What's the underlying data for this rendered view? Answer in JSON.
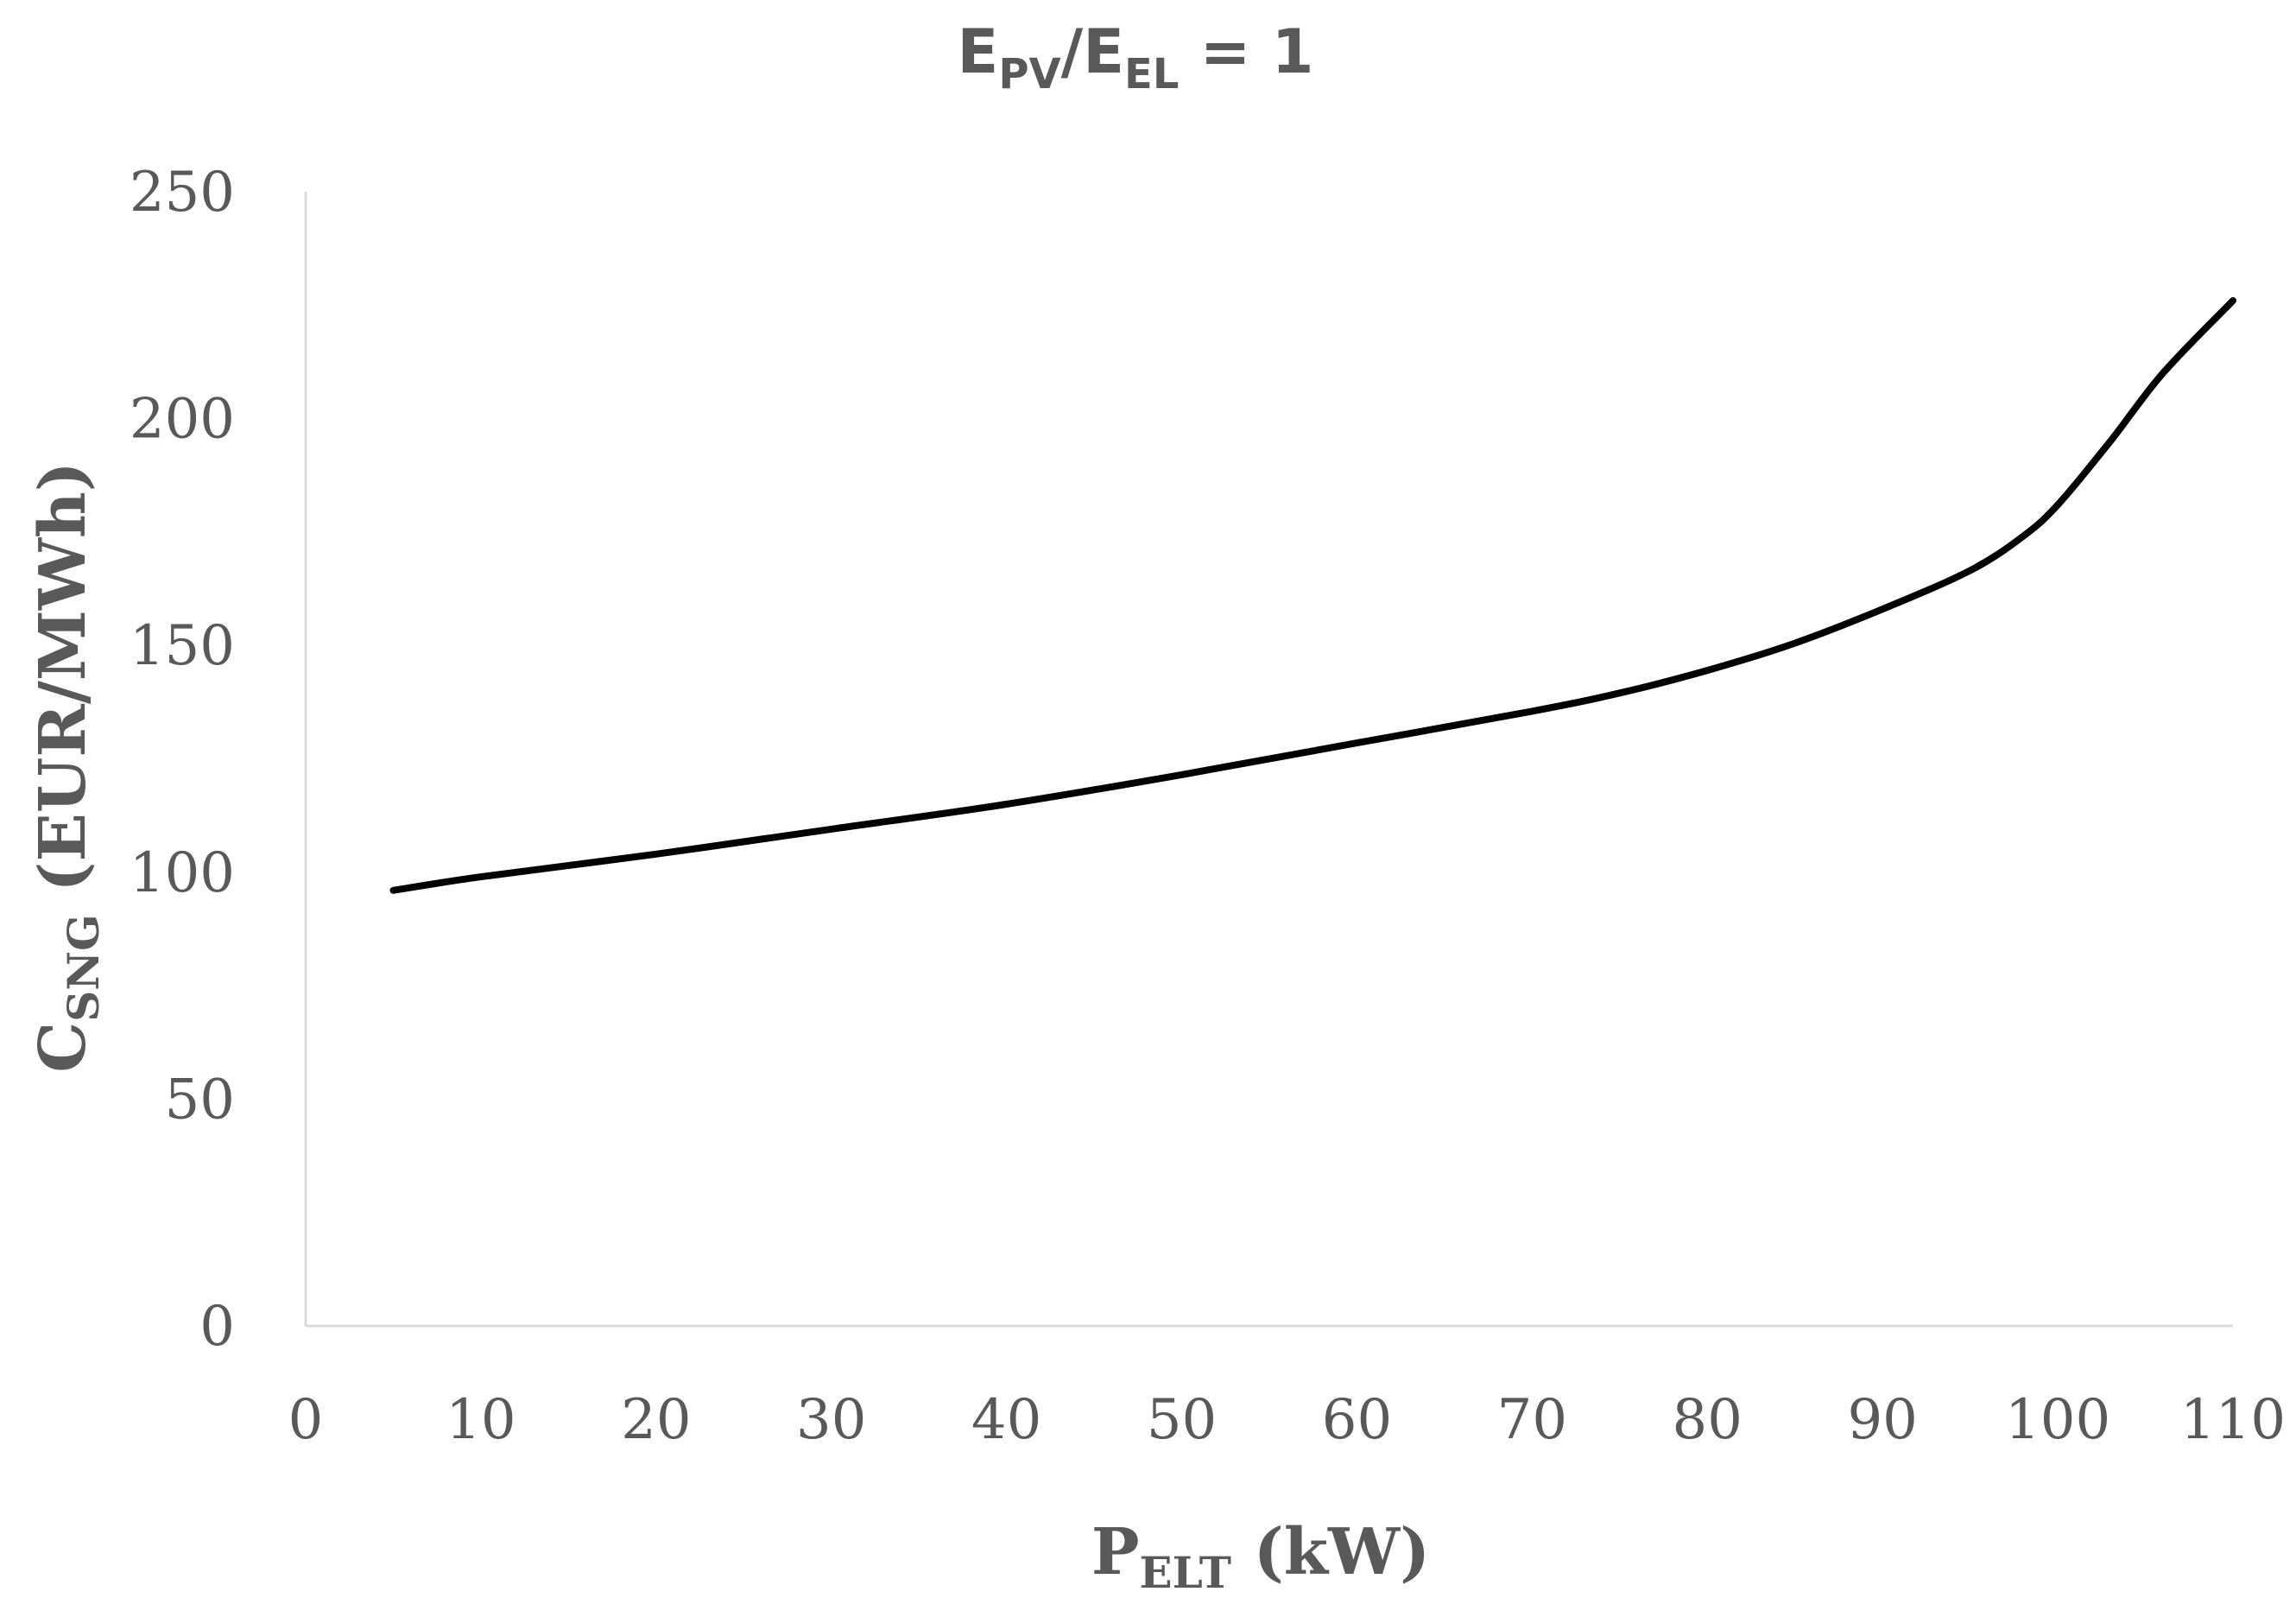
{
  "chart_data": {
    "type": "line",
    "title": {
      "main1": "E",
      "sub1": "PV",
      "main2": "/E",
      "sub2": "EL",
      "main3": " = 1"
    },
    "xlabel": {
      "main": "P",
      "sub": "ELT",
      "rest": " (kW)"
    },
    "ylabel": {
      "main": "C",
      "sub": "SNG",
      "rest": " (EUR/MWh)"
    },
    "xlim": [
      0,
      110
    ],
    "ylim": [
      0,
      250
    ],
    "xticks": [
      0,
      10,
      20,
      30,
      40,
      50,
      60,
      70,
      80,
      90,
      100,
      110
    ],
    "yticks": [
      0,
      50,
      100,
      150,
      200,
      250
    ],
    "grid": false,
    "series": [
      {
        "name": "C_SNG",
        "color": "#000000",
        "x": [
          5,
          10,
          20,
          30,
          40,
          50,
          60,
          70,
          75,
          80,
          85,
          90,
          95,
          98,
          100,
          103,
          106,
          110
        ],
        "y": [
          96,
          99,
          104,
          109.5,
          115,
          121.5,
          128.5,
          135.5,
          139.5,
          144.5,
          150.5,
          158,
          166.5,
          174,
          181,
          195,
          210,
          226
        ]
      }
    ],
    "axis_color": "#d9d9d9"
  }
}
